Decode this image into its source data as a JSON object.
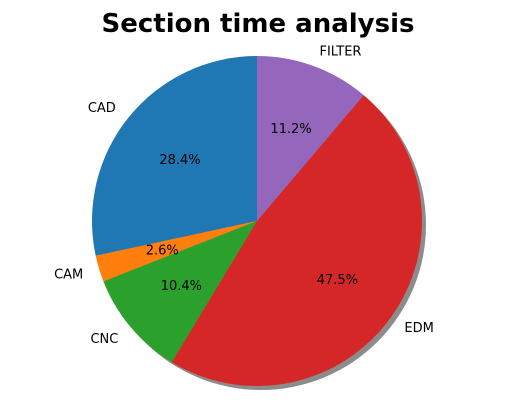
{
  "chart_data": {
    "type": "pie",
    "title": "Section time analysis",
    "labels": [
      "CAD",
      "CAM",
      "CNC",
      "EDM",
      "FILTER"
    ],
    "values": [
      28.4,
      2.6,
      10.4,
      47.5,
      11.2
    ],
    "percent_labels": [
      "28.4%",
      "2.6%",
      "10.4%",
      "47.5%",
      "11.2%"
    ],
    "colors": [
      "#1f77b4",
      "#ff7f0e",
      "#2ca02c",
      "#d62728",
      "#9467bd"
    ],
    "start_angle_deg": 90,
    "direction": "counterclockwise",
    "shadow": true,
    "legend": "none"
  }
}
